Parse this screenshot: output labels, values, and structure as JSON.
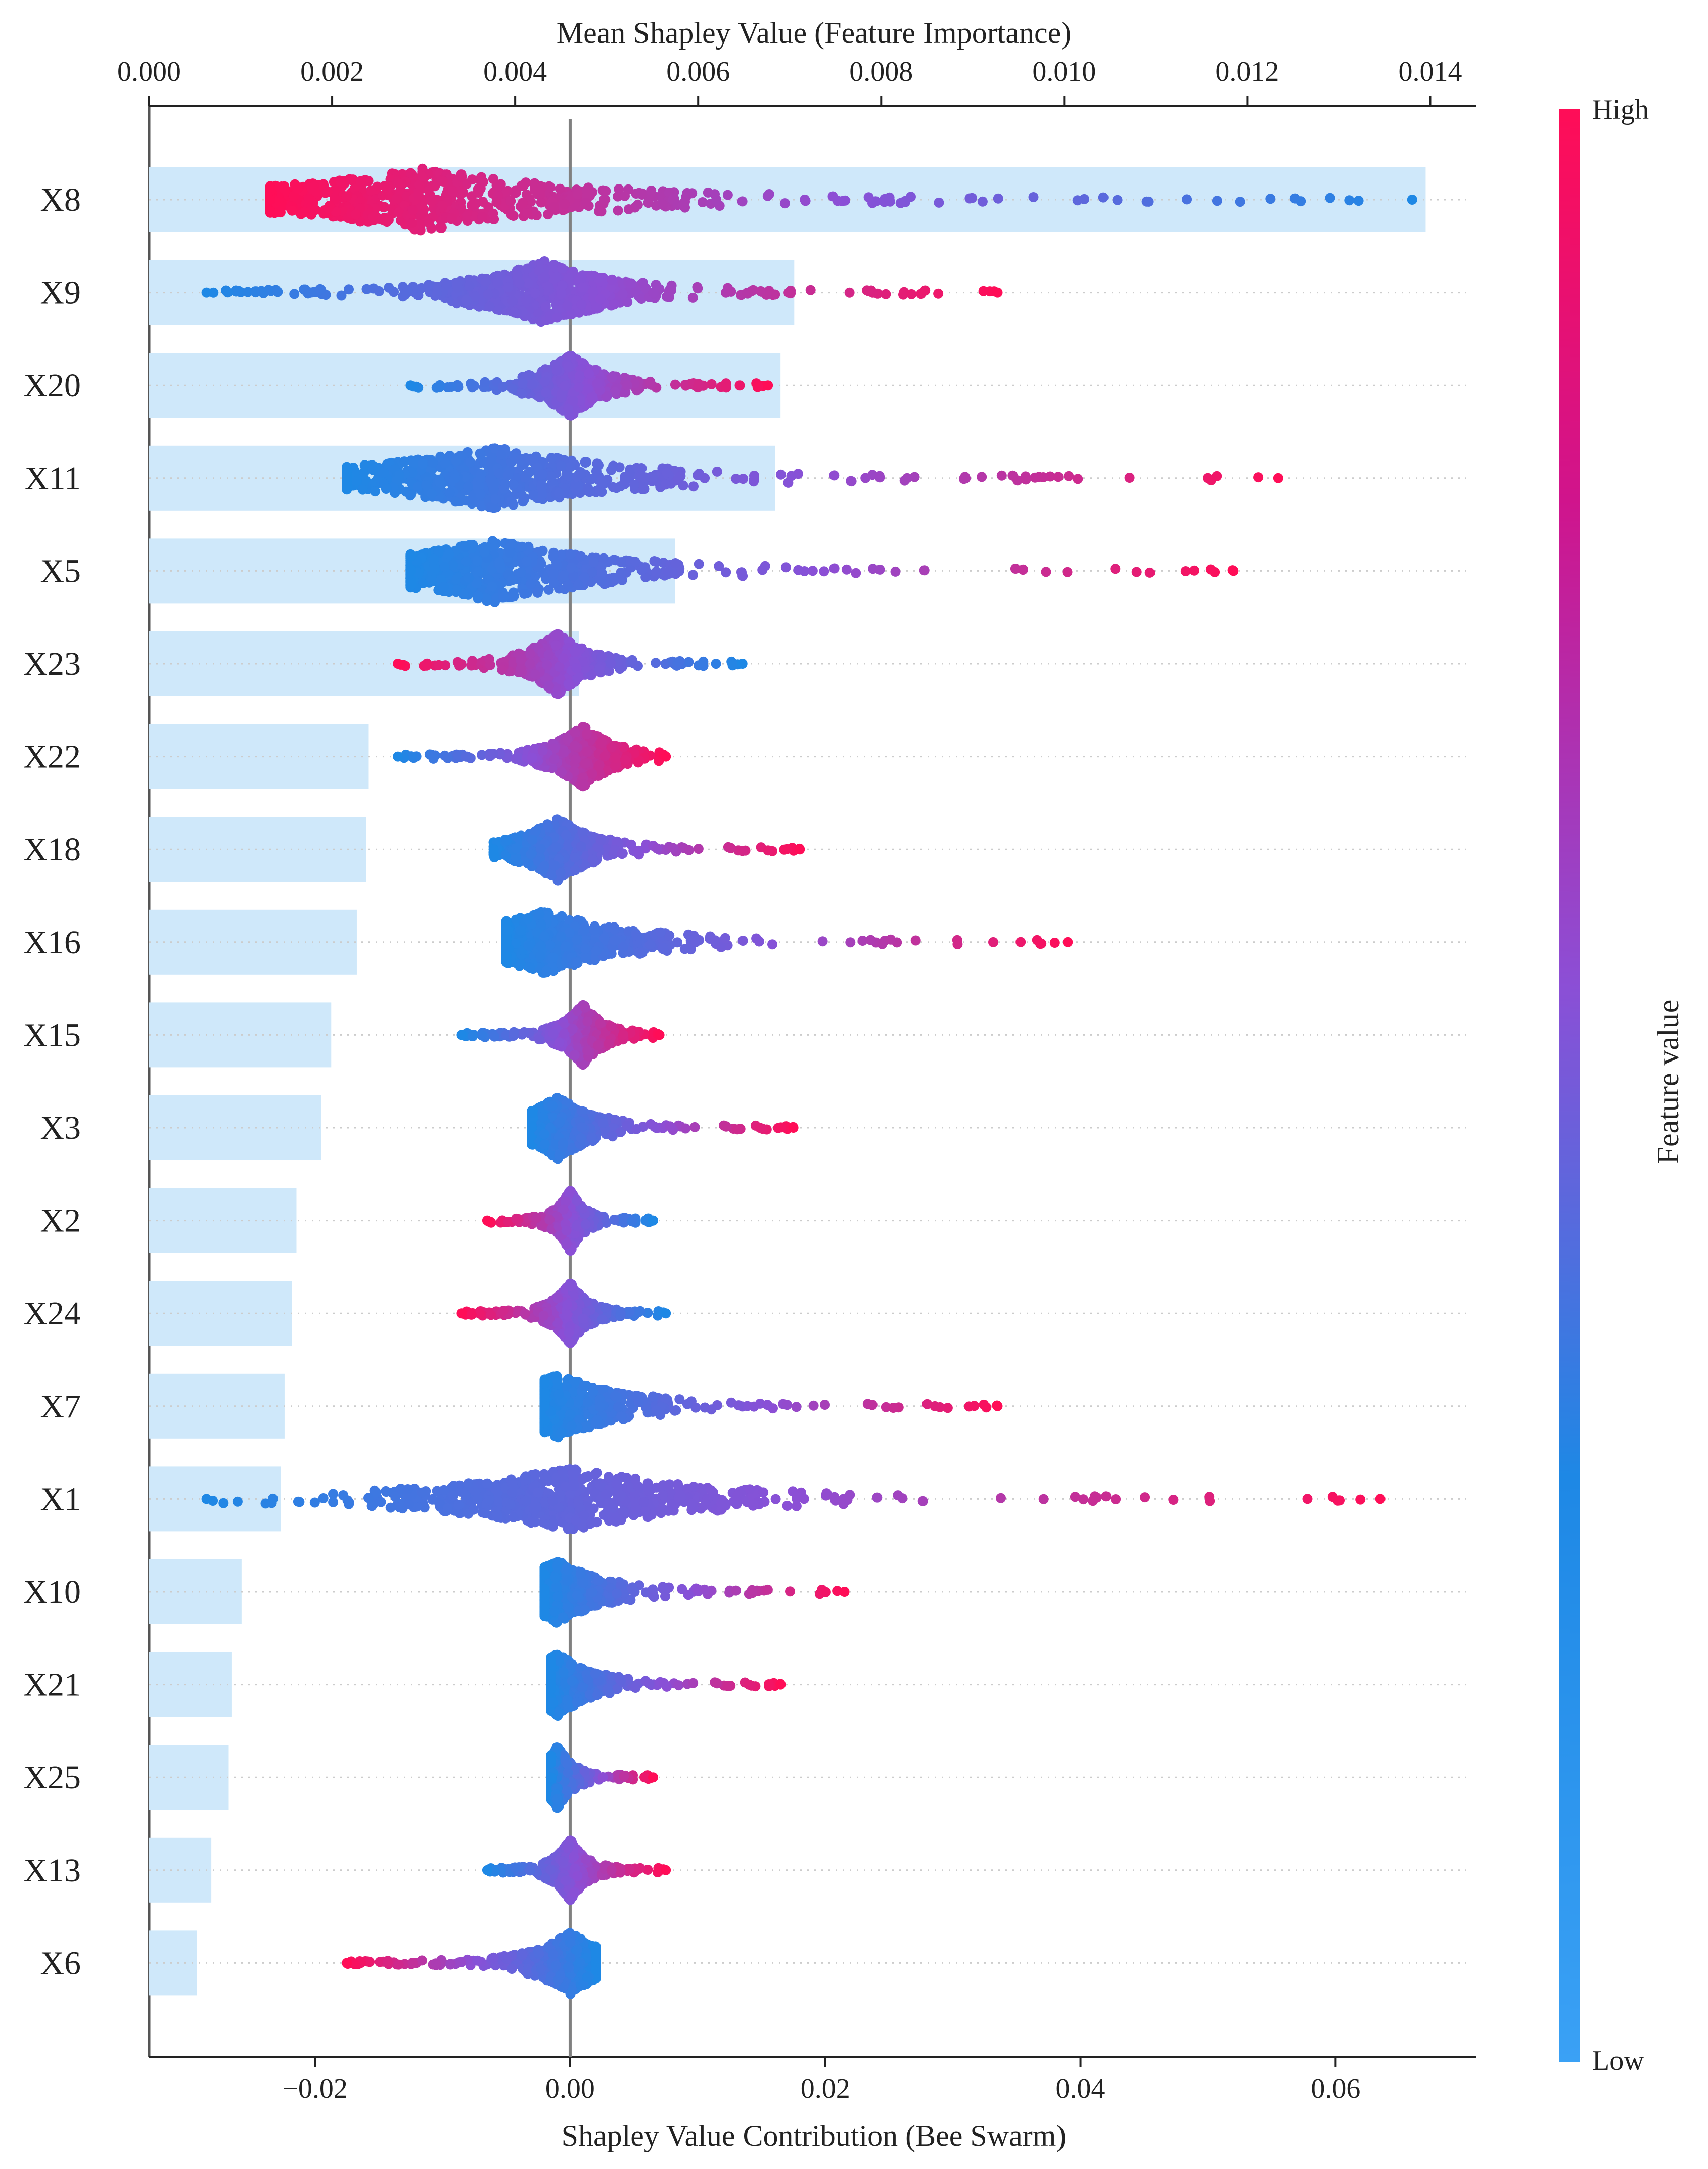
{
  "chart_data": {
    "type": "scatter",
    "subtype": "shap-beeswarm-with-bar-overlay",
    "top_axis": {
      "label": "Mean Shapley Value (Feature Importance)",
      "range": [
        0.0,
        0.0145
      ],
      "ticks": [
        "0.000",
        "0.002",
        "0.004",
        "0.006",
        "0.008",
        "0.010",
        "0.012",
        "0.014"
      ],
      "tick_values": [
        0.0,
        0.002,
        0.004,
        0.006,
        0.008,
        0.01,
        0.012,
        0.014
      ]
    },
    "bottom_axis": {
      "label": "Shapley Value Contribution (Bee Swarm)",
      "range": [
        -0.033,
        0.071
      ],
      "ticks": [
        "−0.02",
        "0.00",
        "0.02",
        "0.04",
        "0.06"
      ],
      "tick_values": [
        -0.02,
        0.0,
        0.02,
        0.04,
        0.06
      ]
    },
    "colorbar": {
      "label": "Feature value",
      "high_label": "High",
      "low_label": "Low",
      "high_color": "#ff0d57",
      "mid_color": "#8b4fd6",
      "low_color": "#1e88e5",
      "light_low_color": "#3aa1f5"
    },
    "bar_color": "#cfe8fa",
    "grid": false,
    "features": [
      "X8",
      "X9",
      "X20",
      "X11",
      "X5",
      "X23",
      "X22",
      "X18",
      "X16",
      "X15",
      "X3",
      "X2",
      "X24",
      "X7",
      "X1",
      "X10",
      "X21",
      "X25",
      "X13",
      "X6"
    ],
    "mean_importance": [
      0.01395,
      0.00705,
      0.0069,
      0.00684,
      0.00575,
      0.0047,
      0.0024,
      0.00237,
      0.00227,
      0.00199,
      0.00188,
      0.00161,
      0.00156,
      0.00148,
      0.00144,
      0.00101,
      0.0009,
      0.00087,
      0.00068,
      0.00052
    ],
    "swarm_summary": [
      {
        "feature": "X8",
        "min": -0.0235,
        "max": 0.066,
        "center": -0.0115,
        "low_side": "positive"
      },
      {
        "feature": "X9",
        "min": -0.0285,
        "max": 0.0335,
        "center": -0.002,
        "low_side": "negative"
      },
      {
        "feature": "X20",
        "min": -0.0125,
        "max": 0.0155,
        "center": 0.0,
        "low_side": "negative"
      },
      {
        "feature": "X11",
        "min": -0.0175,
        "max": 0.0555,
        "center": -0.006,
        "low_side": "negative"
      },
      {
        "feature": "X5",
        "min": -0.0125,
        "max": 0.052,
        "center": -0.006,
        "low_side": "negative"
      },
      {
        "feature": "X23",
        "min": -0.0135,
        "max": 0.0135,
        "center": -0.001,
        "low_side": "positive"
      },
      {
        "feature": "X22",
        "min": -0.0135,
        "max": 0.0075,
        "center": 0.001,
        "low_side": "negative"
      },
      {
        "feature": "X18",
        "min": -0.006,
        "max": 0.018,
        "center": -0.001,
        "low_side": "negative"
      },
      {
        "feature": "X16",
        "min": -0.005,
        "max": 0.039,
        "center": -0.002,
        "low_side": "negative"
      },
      {
        "feature": "X15",
        "min": -0.0085,
        "max": 0.007,
        "center": 0.001,
        "low_side": "negative"
      },
      {
        "feature": "X3",
        "min": -0.003,
        "max": 0.0175,
        "center": -0.001,
        "low_side": "negative"
      },
      {
        "feature": "X2",
        "min": -0.0065,
        "max": 0.0065,
        "center": 0.0,
        "low_side": "positive"
      },
      {
        "feature": "X24",
        "min": -0.0085,
        "max": 0.0075,
        "center": 0.0,
        "low_side": "positive"
      },
      {
        "feature": "X7",
        "min": -0.002,
        "max": 0.0335,
        "center": -0.001,
        "low_side": "negative"
      },
      {
        "feature": "X1",
        "min": -0.0285,
        "max": 0.0635,
        "center": 0.0,
        "low_side": "negative"
      },
      {
        "feature": "X10",
        "min": -0.002,
        "max": 0.0215,
        "center": -0.001,
        "low_side": "negative"
      },
      {
        "feature": "X21",
        "min": -0.0015,
        "max": 0.0165,
        "center": -0.001,
        "low_side": "negative"
      },
      {
        "feature": "X25",
        "min": -0.0015,
        "max": 0.0065,
        "center": -0.001,
        "low_side": "negative"
      },
      {
        "feature": "X13",
        "min": -0.0065,
        "max": 0.0075,
        "center": 0.0,
        "low_side": "negative"
      },
      {
        "feature": "X6",
        "min": -0.0175,
        "max": 0.002,
        "center": 0.0,
        "low_side": "positive"
      }
    ]
  }
}
